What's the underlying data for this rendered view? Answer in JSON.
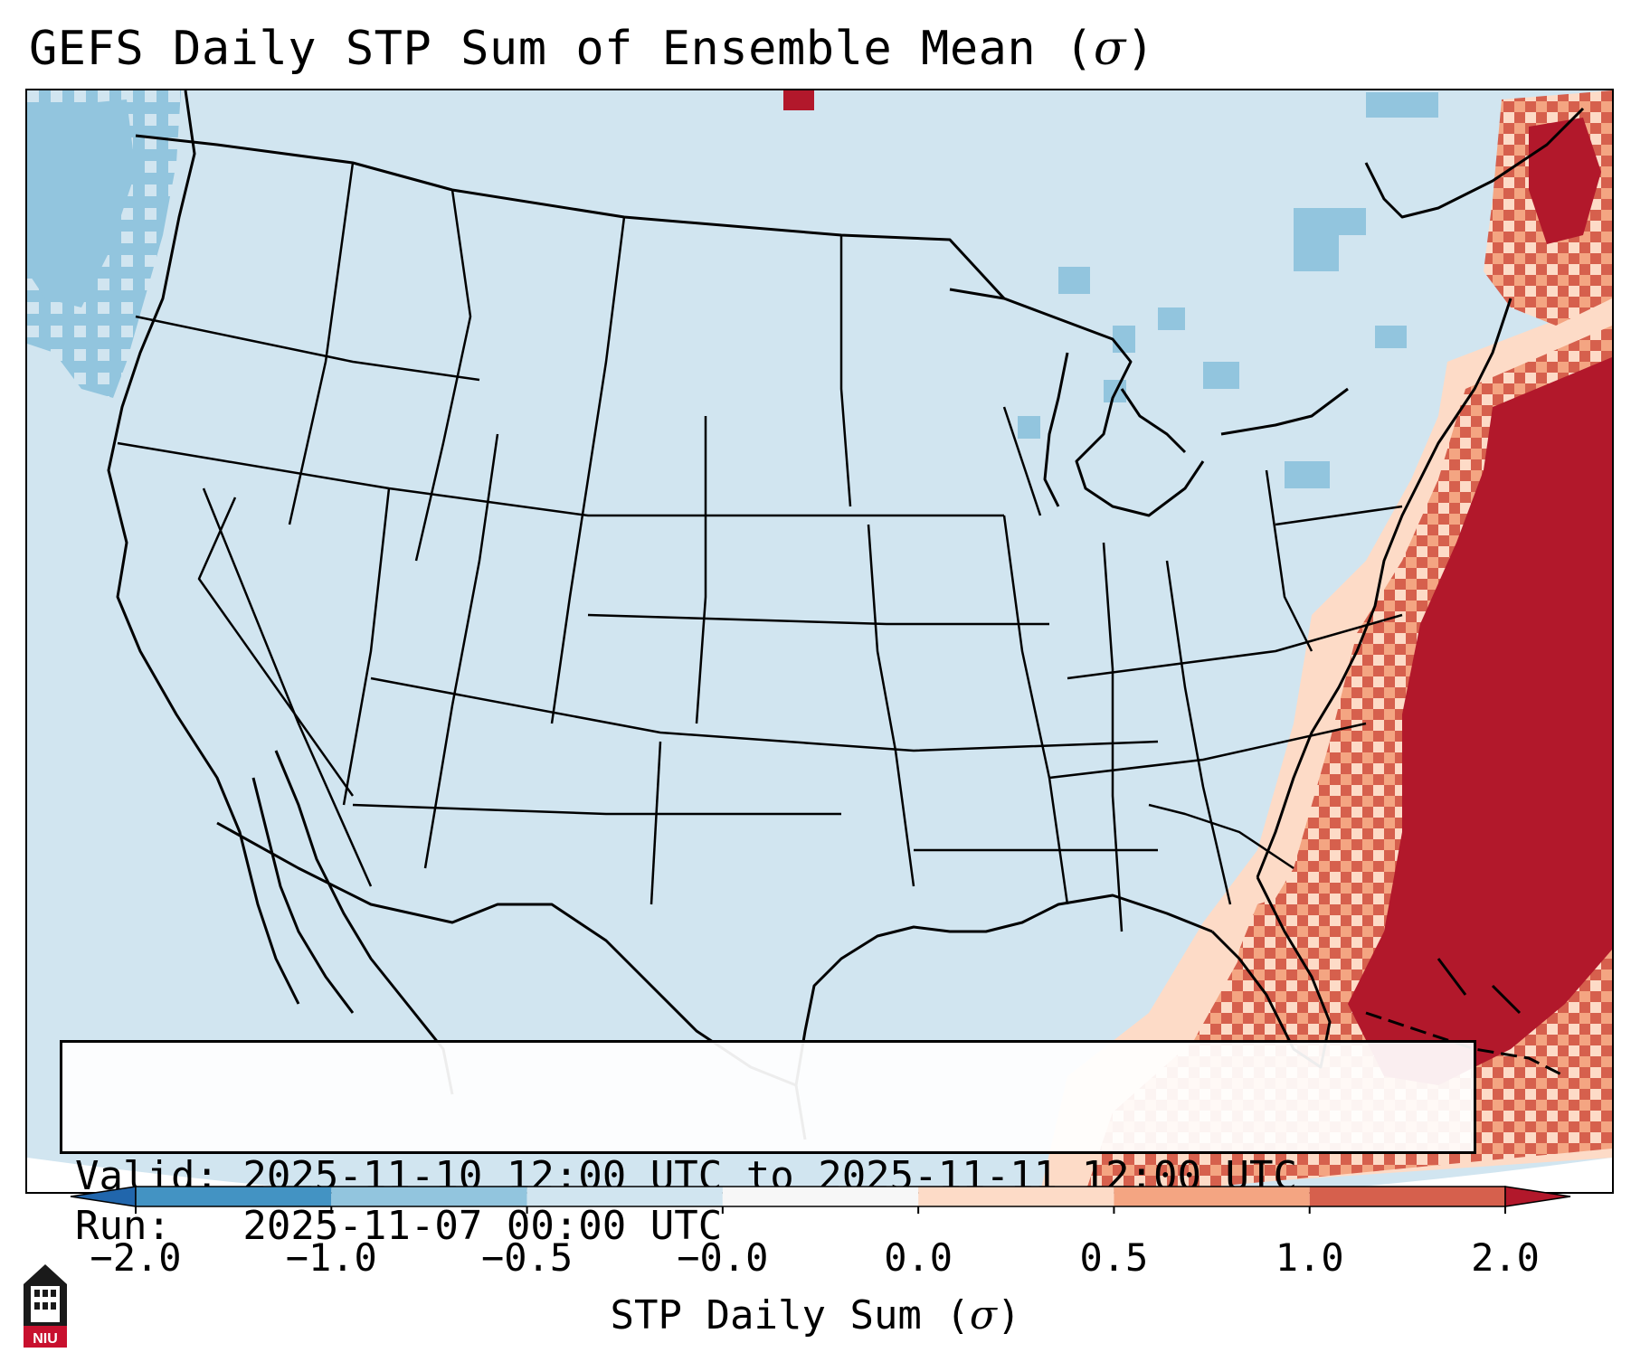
{
  "title": {
    "text": "GEFS Daily STP Sum of Ensemble Mean (",
    "symbol": "σ",
    "suffix": ")"
  },
  "info_box": {
    "valid_line": "Valid: 2025-11-10 12:00 UTC to 2025-11-11 12:00 UTC",
    "run_line": "Run:   2025-11-07 00:00 UTC"
  },
  "colorbar": {
    "tick_labels": [
      "−2.0",
      "−1.0",
      "−0.5",
      "−0.0",
      "0.0",
      "0.5",
      "1.0",
      "2.0"
    ],
    "label_text": "STP Daily Sum (",
    "label_symbol": "σ",
    "label_suffix": ")",
    "bins": [
      {
        "range": "< -2.0",
        "color": "#2166ac"
      },
      {
        "range": "-2.0 to -1.0",
        "color": "#4393c3"
      },
      {
        "range": "-1.0 to -0.5",
        "color": "#92c5de"
      },
      {
        "range": "-0.5 to -0.0",
        "color": "#d1e5f0"
      },
      {
        "range": "-0.0 to 0.0",
        "color": "#f7f7f7"
      },
      {
        "range": "0.0 to 0.5",
        "color": "#fddbc7"
      },
      {
        "range": "0.5 to 1.0",
        "color": "#f4a582"
      },
      {
        "range": "1.0 to 2.0",
        "color": "#d6604d"
      },
      {
        "range": "> 2.0",
        "color": "#b2182b"
      }
    ]
  },
  "map": {
    "projection": "Lambert conformal (CONUS)",
    "base_color": "#d1e5f0",
    "features": [
      "state-borders",
      "coastlines",
      "country-borders"
    ],
    "anomaly_regions": [
      {
        "area": "Pacific Northwest coast",
        "level": "-1.0 to -0.5"
      },
      {
        "area": "Great Lakes / Northeast",
        "level": "-1.0 to -0.5"
      },
      {
        "area": "Western Atlantic",
        "level": "> 2.0"
      },
      {
        "area": "Southeast coast / Gulf Stream",
        "level": "0.0 to 2.0"
      },
      {
        "area": "Maritimes / Gulf of St. Lawrence",
        "level": "0.0 to 2.0"
      }
    ]
  },
  "logo": {
    "text": "NIU",
    "icon": "niu-tower-logo"
  }
}
